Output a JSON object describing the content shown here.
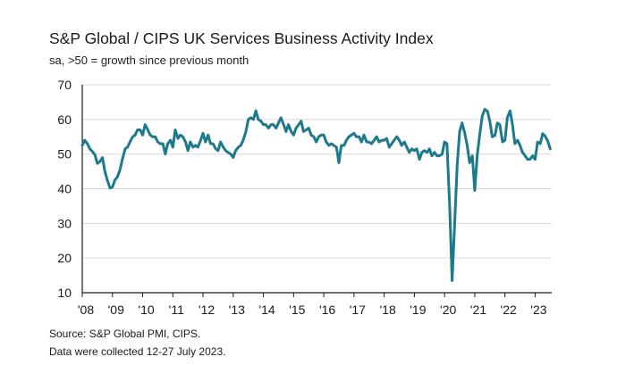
{
  "chart_data": {
    "type": "line",
    "title": "S&P Global / CIPS UK Services Business Activity Index",
    "subtitle": "sa, >50 = growth since previous month",
    "ylim": [
      10,
      70
    ],
    "y_ticks": [
      "70",
      "60",
      "50",
      "40",
      "30",
      "20",
      "10"
    ],
    "x_tick_labels": [
      "'08",
      "'09",
      "'10",
      "'11",
      "'12",
      "'13",
      "'14",
      "'15",
      "'16",
      "'17",
      "'18",
      "'19",
      "'20",
      "'21",
      "'22",
      "'23"
    ],
    "x_range": [
      2008.0,
      2023.55
    ],
    "color": "#1d7a8c",
    "series": [
      {
        "name": "UK Services Business Activity Index",
        "points": [
          [
            2008.0,
            52.5
          ],
          [
            2008.08,
            54.0
          ],
          [
            2008.17,
            53.0
          ],
          [
            2008.25,
            51.5
          ],
          [
            2008.33,
            50.8
          ],
          [
            2008.42,
            49.8
          ],
          [
            2008.5,
            47.3
          ],
          [
            2008.58,
            47.8
          ],
          [
            2008.67,
            49.0
          ],
          [
            2008.75,
            45.0
          ],
          [
            2008.83,
            42.5
          ],
          [
            2008.92,
            40.2
          ],
          [
            2009.0,
            40.5
          ],
          [
            2009.08,
            42.5
          ],
          [
            2009.17,
            43.5
          ],
          [
            2009.25,
            45.5
          ],
          [
            2009.33,
            48.5
          ],
          [
            2009.42,
            51.5
          ],
          [
            2009.5,
            52.0
          ],
          [
            2009.58,
            53.5
          ],
          [
            2009.67,
            55.0
          ],
          [
            2009.75,
            55.5
          ],
          [
            2009.83,
            57.0
          ],
          [
            2009.92,
            57.0
          ],
          [
            2010.0,
            55.5
          ],
          [
            2010.08,
            58.5
          ],
          [
            2010.17,
            57.0
          ],
          [
            2010.25,
            55.5
          ],
          [
            2010.33,
            55.0
          ],
          [
            2010.42,
            55.0
          ],
          [
            2010.5,
            53.5
          ],
          [
            2010.58,
            53.0
          ],
          [
            2010.67,
            53.0
          ],
          [
            2010.75,
            50.0
          ],
          [
            2010.83,
            53.0
          ],
          [
            2010.92,
            54.0
          ],
          [
            2011.0,
            52.0
          ],
          [
            2011.08,
            57.0
          ],
          [
            2011.17,
            54.5
          ],
          [
            2011.25,
            55.5
          ],
          [
            2011.33,
            55.0
          ],
          [
            2011.42,
            53.5
          ],
          [
            2011.5,
            51.0
          ],
          [
            2011.58,
            53.5
          ],
          [
            2011.67,
            52.0
          ],
          [
            2011.75,
            52.5
          ],
          [
            2011.83,
            52.0
          ],
          [
            2011.92,
            54.0
          ],
          [
            2012.0,
            56.0
          ],
          [
            2012.08,
            53.5
          ],
          [
            2012.17,
            55.5
          ],
          [
            2012.25,
            53.0
          ],
          [
            2012.33,
            53.0
          ],
          [
            2012.42,
            51.5
          ],
          [
            2012.5,
            51.0
          ],
          [
            2012.58,
            53.5
          ],
          [
            2012.67,
            52.0
          ],
          [
            2012.75,
            51.0
          ],
          [
            2012.83,
            50.5
          ],
          [
            2012.92,
            50.0
          ],
          [
            2013.0,
            49.0
          ],
          [
            2013.08,
            51.0
          ],
          [
            2013.17,
            52.0
          ],
          [
            2013.25,
            52.5
          ],
          [
            2013.33,
            54.0
          ],
          [
            2013.42,
            56.5
          ],
          [
            2013.5,
            60.0
          ],
          [
            2013.58,
            60.5
          ],
          [
            2013.67,
            60.0
          ],
          [
            2013.75,
            62.5
          ],
          [
            2013.83,
            60.0
          ],
          [
            2013.92,
            59.5
          ],
          [
            2014.0,
            58.5
          ],
          [
            2014.08,
            58.5
          ],
          [
            2014.17,
            57.5
          ],
          [
            2014.25,
            58.5
          ],
          [
            2014.33,
            58.5
          ],
          [
            2014.42,
            57.5
          ],
          [
            2014.5,
            59.0
          ],
          [
            2014.58,
            60.5
          ],
          [
            2014.67,
            58.5
          ],
          [
            2014.75,
            56.5
          ],
          [
            2014.83,
            58.5
          ],
          [
            2014.92,
            56.5
          ],
          [
            2015.0,
            55.5
          ],
          [
            2015.08,
            57.5
          ],
          [
            2015.17,
            58.5
          ],
          [
            2015.25,
            59.5
          ],
          [
            2015.33,
            56.5
          ],
          [
            2015.42,
            57.0
          ],
          [
            2015.5,
            57.5
          ],
          [
            2015.58,
            55.5
          ],
          [
            2015.67,
            55.0
          ],
          [
            2015.75,
            53.5
          ],
          [
            2015.83,
            55.0
          ],
          [
            2015.92,
            55.5
          ],
          [
            2016.0,
            55.5
          ],
          [
            2016.08,
            53.5
          ],
          [
            2016.17,
            52.5
          ],
          [
            2016.25,
            53.0
          ],
          [
            2016.33,
            52.5
          ],
          [
            2016.42,
            52.0
          ],
          [
            2016.5,
            47.5
          ],
          [
            2016.58,
            52.5
          ],
          [
            2016.67,
            52.5
          ],
          [
            2016.75,
            54.0
          ],
          [
            2016.83,
            55.0
          ],
          [
            2016.92,
            55.5
          ],
          [
            2017.0,
            56.0
          ],
          [
            2017.08,
            55.0
          ],
          [
            2017.17,
            55.0
          ],
          [
            2017.25,
            53.5
          ],
          [
            2017.33,
            55.5
          ],
          [
            2017.42,
            53.5
          ],
          [
            2017.5,
            53.5
          ],
          [
            2017.58,
            53.0
          ],
          [
            2017.67,
            54.0
          ],
          [
            2017.75,
            55.0
          ],
          [
            2017.83,
            53.5
          ],
          [
            2017.92,
            54.0
          ],
          [
            2018.0,
            54.0
          ],
          [
            2018.08,
            54.5
          ],
          [
            2018.17,
            52.0
          ],
          [
            2018.25,
            53.0
          ],
          [
            2018.33,
            54.0
          ],
          [
            2018.42,
            55.0
          ],
          [
            2018.5,
            54.0
          ],
          [
            2018.58,
            52.5
          ],
          [
            2018.67,
            53.5
          ],
          [
            2018.75,
            52.0
          ],
          [
            2018.83,
            50.5
          ],
          [
            2018.92,
            51.5
          ],
          [
            2019.0,
            51.0
          ],
          [
            2019.08,
            51.5
          ],
          [
            2019.17,
            48.5
          ],
          [
            2019.25,
            50.5
          ],
          [
            2019.33,
            51.0
          ],
          [
            2019.42,
            50.5
          ],
          [
            2019.5,
            51.5
          ],
          [
            2019.58,
            49.5
          ],
          [
            2019.67,
            50.5
          ],
          [
            2019.75,
            49.5
          ],
          [
            2019.83,
            49.5
          ],
          [
            2019.92,
            50.0
          ],
          [
            2020.0,
            53.5
          ],
          [
            2020.08,
            53.0
          ],
          [
            2020.17,
            35.0
          ],
          [
            2020.25,
            13.5
          ],
          [
            2020.33,
            29.0
          ],
          [
            2020.42,
            47.0
          ],
          [
            2020.5,
            56.5
          ],
          [
            2020.58,
            59.0
          ],
          [
            2020.67,
            56.0
          ],
          [
            2020.75,
            52.5
          ],
          [
            2020.83,
            47.5
          ],
          [
            2020.92,
            49.5
          ],
          [
            2021.0,
            39.5
          ],
          [
            2021.08,
            49.5
          ],
          [
            2021.17,
            56.0
          ],
          [
            2021.25,
            61.0
          ],
          [
            2021.33,
            62.9
          ],
          [
            2021.42,
            62.4
          ],
          [
            2021.5,
            59.5
          ],
          [
            2021.58,
            55.0
          ],
          [
            2021.67,
            55.4
          ],
          [
            2021.75,
            59.0
          ],
          [
            2021.83,
            58.5
          ],
          [
            2021.92,
            53.5
          ],
          [
            2022.0,
            54.0
          ],
          [
            2022.08,
            60.5
          ],
          [
            2022.17,
            62.5
          ],
          [
            2022.25,
            58.5
          ],
          [
            2022.33,
            53.0
          ],
          [
            2022.42,
            54.0
          ],
          [
            2022.5,
            52.5
          ],
          [
            2022.58,
            50.5
          ],
          [
            2022.67,
            49.5
          ],
          [
            2022.75,
            48.5
          ],
          [
            2022.83,
            48.5
          ],
          [
            2022.92,
            49.5
          ],
          [
            2023.0,
            48.5
          ],
          [
            2023.08,
            53.5
          ],
          [
            2023.17,
            53.0
          ],
          [
            2023.25,
            55.9
          ],
          [
            2023.33,
            55.2
          ],
          [
            2023.42,
            53.7
          ],
          [
            2023.5,
            51.5
          ]
        ]
      }
    ]
  },
  "footer": {
    "source": "Source: S&P Global PMI, CIPS.",
    "note": "Data were collected 12-27 July 2023."
  }
}
